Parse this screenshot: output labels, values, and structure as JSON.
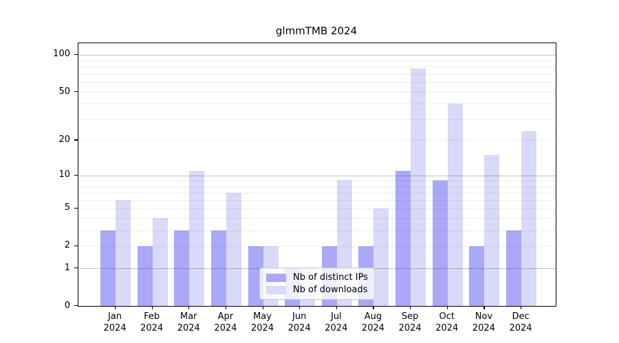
{
  "chart_data": {
    "type": "bar",
    "title": "glmmTMB 2024",
    "categories": [
      "Jan\n2024",
      "Feb\n2024",
      "Mar\n2024",
      "Apr\n2024",
      "May\n2024",
      "Jun\n2024",
      "Jul\n2024",
      "Aug\n2024",
      "Sep\n2024",
      "Oct\n2024",
      "Nov\n2024",
      "Dec\n2024"
    ],
    "series": [
      {
        "name": "Nb of distinct IPs",
        "color": "#a9a9f8",
        "values": [
          3,
          2,
          3,
          3,
          2,
          1,
          2,
          2,
          11,
          9,
          2,
          3
        ]
      },
      {
        "name": "Nb of downloads",
        "color": "#d9d9f8",
        "values": [
          6,
          4,
          11,
          7,
          2,
          1,
          9,
          5,
          77,
          40,
          15,
          24
        ]
      }
    ],
    "yscale": "log1p",
    "ylim": [
      0,
      124
    ],
    "yticks": [
      100,
      50,
      20,
      10,
      5,
      2,
      1,
      0
    ],
    "grid": {
      "major_values": [
        1,
        10,
        100
      ],
      "minor_values": [
        2,
        3,
        4,
        5,
        6,
        7,
        8,
        9,
        20,
        30,
        40,
        50,
        60,
        70,
        80,
        90
      ],
      "major_color": "#c3c3c3",
      "minor_color": "#ededed"
    },
    "legend_position": "bottom-center"
  }
}
